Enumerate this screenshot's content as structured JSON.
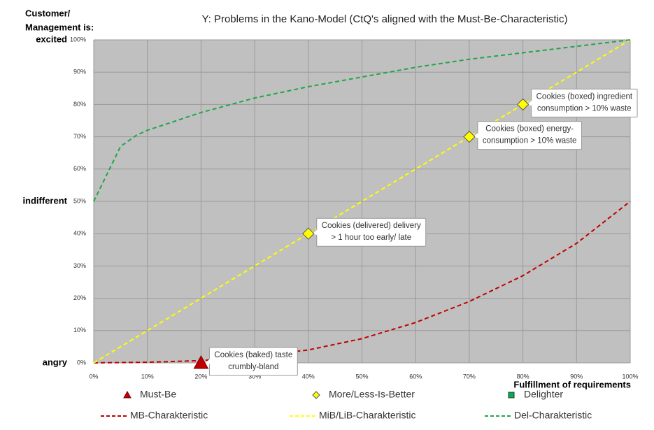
{
  "chart_data": {
    "type": "line",
    "title": "Y: Problems in the Kano-Model (CtQ's aligned with the Must-Be-Characteristic)",
    "y_axis_title": [
      "Customer/",
      "Management is:"
    ],
    "y_side_labels": [
      {
        "value": 100,
        "label": "excited"
      },
      {
        "value": 50,
        "label": "indifferent"
      },
      {
        "value": 0,
        "label": "angry"
      }
    ],
    "x_axis_title": "Fulfillment of requirements",
    "xlim": [
      0,
      100
    ],
    "ylim": [
      0,
      100
    ],
    "xticks": [
      {
        "value": 0,
        "label": "0%"
      },
      {
        "value": 10,
        "label": "10%"
      },
      {
        "value": 20,
        "label": "20%"
      },
      {
        "value": 30,
        "label": "30%"
      },
      {
        "value": 40,
        "label": "40%"
      },
      {
        "value": 50,
        "label": "50%"
      },
      {
        "value": 60,
        "label": "60%"
      },
      {
        "value": 70,
        "label": "70%"
      },
      {
        "value": 80,
        "label": "80%"
      },
      {
        "value": 90,
        "label": "90%"
      },
      {
        "value": 100,
        "label": "100%"
      }
    ],
    "yticks": [
      {
        "value": 0,
        "label": "0%"
      },
      {
        "value": 10,
        "label": "10%"
      },
      {
        "value": 20,
        "label": "20%"
      },
      {
        "value": 30,
        "label": "30%"
      },
      {
        "value": 40,
        "label": "40%"
      },
      {
        "value": 50,
        "label": "50%"
      },
      {
        "value": 60,
        "label": "60%"
      },
      {
        "value": 70,
        "label": "70%"
      },
      {
        "value": 80,
        "label": "80%"
      },
      {
        "value": 90,
        "label": "90%"
      },
      {
        "value": 100,
        "label": "100%"
      }
    ],
    "grid": true,
    "series": [
      {
        "name": "Must-Be",
        "type": "scatter",
        "marker": "triangle",
        "color": "#c00000",
        "x": [
          20
        ],
        "values": [
          0
        ],
        "point_labels": [
          [
            "Cookies (baked) taste",
            "crumbly-bland"
          ]
        ]
      },
      {
        "name": "More/Less-Is-Better",
        "type": "scatter",
        "marker": "diamond",
        "color": "#ffff00",
        "x": [
          40,
          70,
          80
        ],
        "values": [
          40,
          70,
          80
        ],
        "point_labels": [
          [
            "Cookies (delivered) delivery",
            "> 1 hour too early/ late"
          ],
          [
            "Cookies (boxed) energy-",
            "consumption > 10% waste"
          ],
          [
            "Cookies (boxed) ingredient",
            "consumption > 10% waste"
          ]
        ]
      },
      {
        "name": "Delighter",
        "type": "scatter",
        "marker": "square",
        "color": "#00b050",
        "x": [],
        "values": [],
        "point_labels": []
      },
      {
        "name": "MB-Charakteristic",
        "type": "line",
        "color": "#c00000",
        "x": [
          0,
          10,
          20,
          30,
          40,
          50,
          60,
          70,
          80,
          90,
          100
        ],
        "values": [
          0,
          0.2,
          0.7,
          2,
          4,
          7.5,
          12.5,
          19,
          27,
          37,
          50
        ]
      },
      {
        "name": "MiB/LiB-Charakteristic",
        "type": "line",
        "color": "#ffff00",
        "x": [
          0,
          100
        ],
        "values": [
          0,
          100
        ]
      },
      {
        "name": "Del-Charakteristic",
        "type": "line",
        "color": "#1fa64a",
        "x": [
          0,
          5,
          8,
          10,
          20,
          30,
          40,
          50,
          60,
          70,
          80,
          90,
          100
        ],
        "values": [
          50,
          67,
          70.5,
          72,
          77.5,
          82,
          85.5,
          88.5,
          91.5,
          94,
          96,
          98,
          100
        ]
      }
    ]
  }
}
